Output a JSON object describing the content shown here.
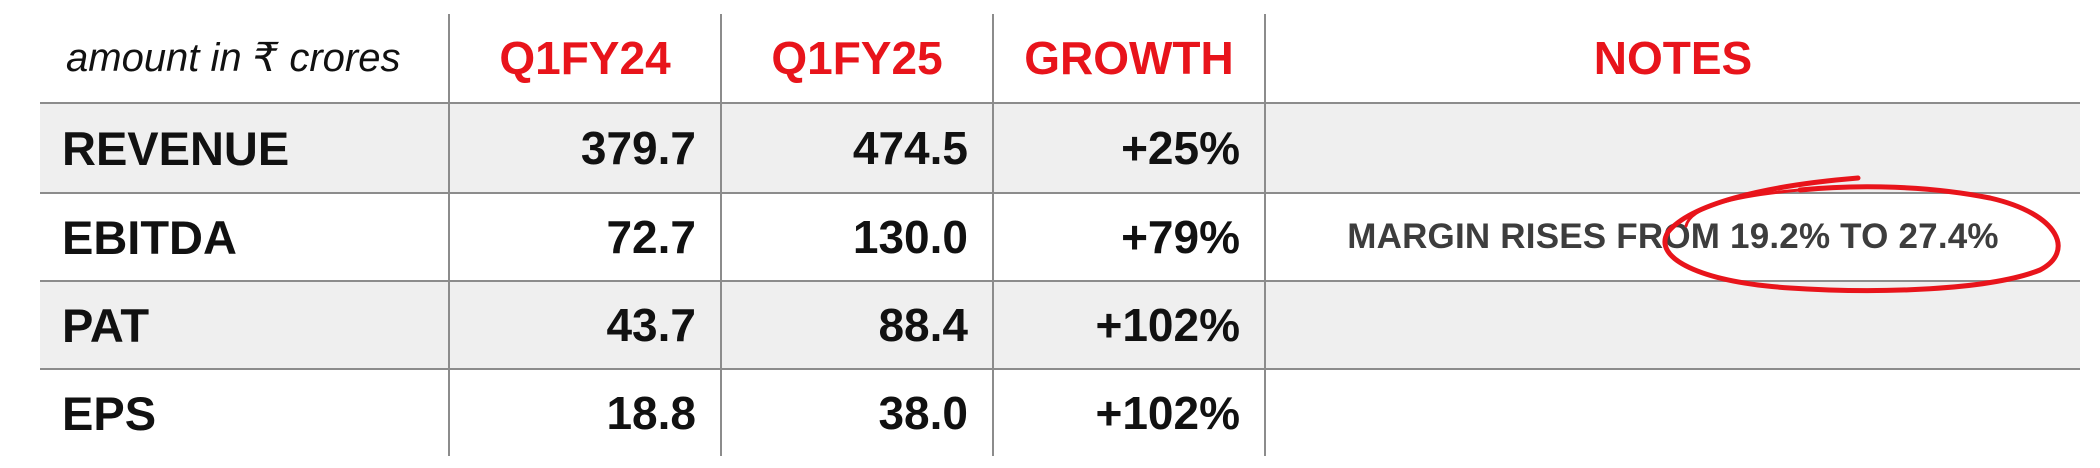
{
  "header": {
    "unit_label": "amount in ₹ crores",
    "columns": [
      "Q1FY24",
      "Q1FY25",
      "GROWTH",
      "NOTES"
    ]
  },
  "rows": [
    {
      "label": "REVENUE",
      "q1fy24": "379.7",
      "q1fy25": "474.5",
      "growth": "+25%",
      "note": ""
    },
    {
      "label": "EBITDA",
      "q1fy24": "72.7",
      "q1fy25": "130.0",
      "growth": "+79%",
      "note": "MARGIN RISES FROM 19.2% TO 27.4%"
    },
    {
      "label": "PAT",
      "q1fy24": "43.7",
      "q1fy25": "88.4",
      "growth": "+102%",
      "note": ""
    },
    {
      "label": "EPS",
      "q1fy24": "18.8",
      "q1fy25": "38.0",
      "growth": "+102%",
      "note": ""
    }
  ],
  "colors": {
    "accent_red": "#e8141b",
    "text": "#111111",
    "note_text": "#3d3d3d",
    "row_shade": "#efefef",
    "grid": "#8c8c8c"
  }
}
